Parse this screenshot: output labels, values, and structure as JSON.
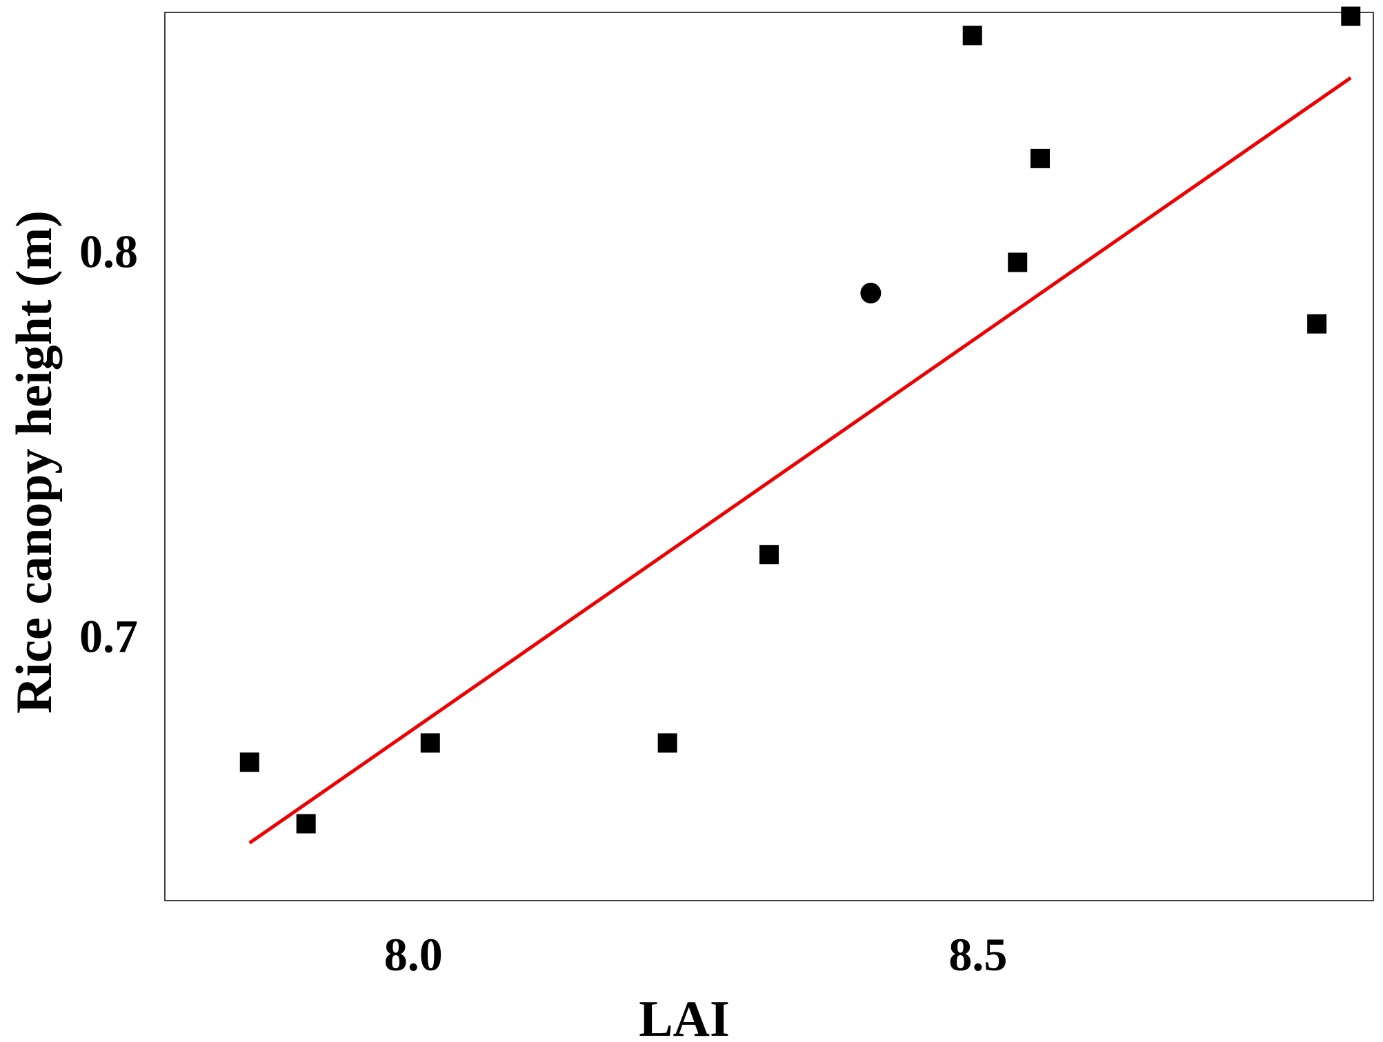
{
  "chart_data": {
    "type": "scatter",
    "title": "",
    "xlabel": "LAI",
    "ylabel": "Rice canopy height (m)",
    "xlim": [
      7.78,
      8.85
    ],
    "ylim": [
      0.631,
      0.862
    ],
    "x_ticks": [
      {
        "value": 8.0,
        "label": "8.0"
      },
      {
        "value": 8.5,
        "label": "8.5"
      }
    ],
    "y_ticks": [
      {
        "value": 0.7,
        "label": "0.7"
      },
      {
        "value": 0.8,
        "label": "0.8"
      }
    ],
    "grid": false,
    "series": [
      {
        "marker": "square",
        "color": "#000000",
        "points": [
          {
            "x": 7.855,
            "y": 0.667
          },
          {
            "x": 7.905,
            "y": 0.651
          },
          {
            "x": 8.015,
            "y": 0.672
          },
          {
            "x": 8.225,
            "y": 0.672
          },
          {
            "x": 8.315,
            "y": 0.721
          },
          {
            "x": 8.495,
            "y": 0.856
          },
          {
            "x": 8.535,
            "y": 0.797
          },
          {
            "x": 8.555,
            "y": 0.824
          },
          {
            "x": 8.8,
            "y": 0.781
          },
          {
            "x": 8.83,
            "y": 0.861
          }
        ]
      },
      {
        "marker": "circle",
        "color": "#000000",
        "points": [
          {
            "x": 8.405,
            "y": 0.789
          }
        ]
      }
    ],
    "fit_line": {
      "color": "#ee0000",
      "x": [
        7.855,
        8.83
      ],
      "y": [
        0.646,
        0.845
      ]
    }
  }
}
